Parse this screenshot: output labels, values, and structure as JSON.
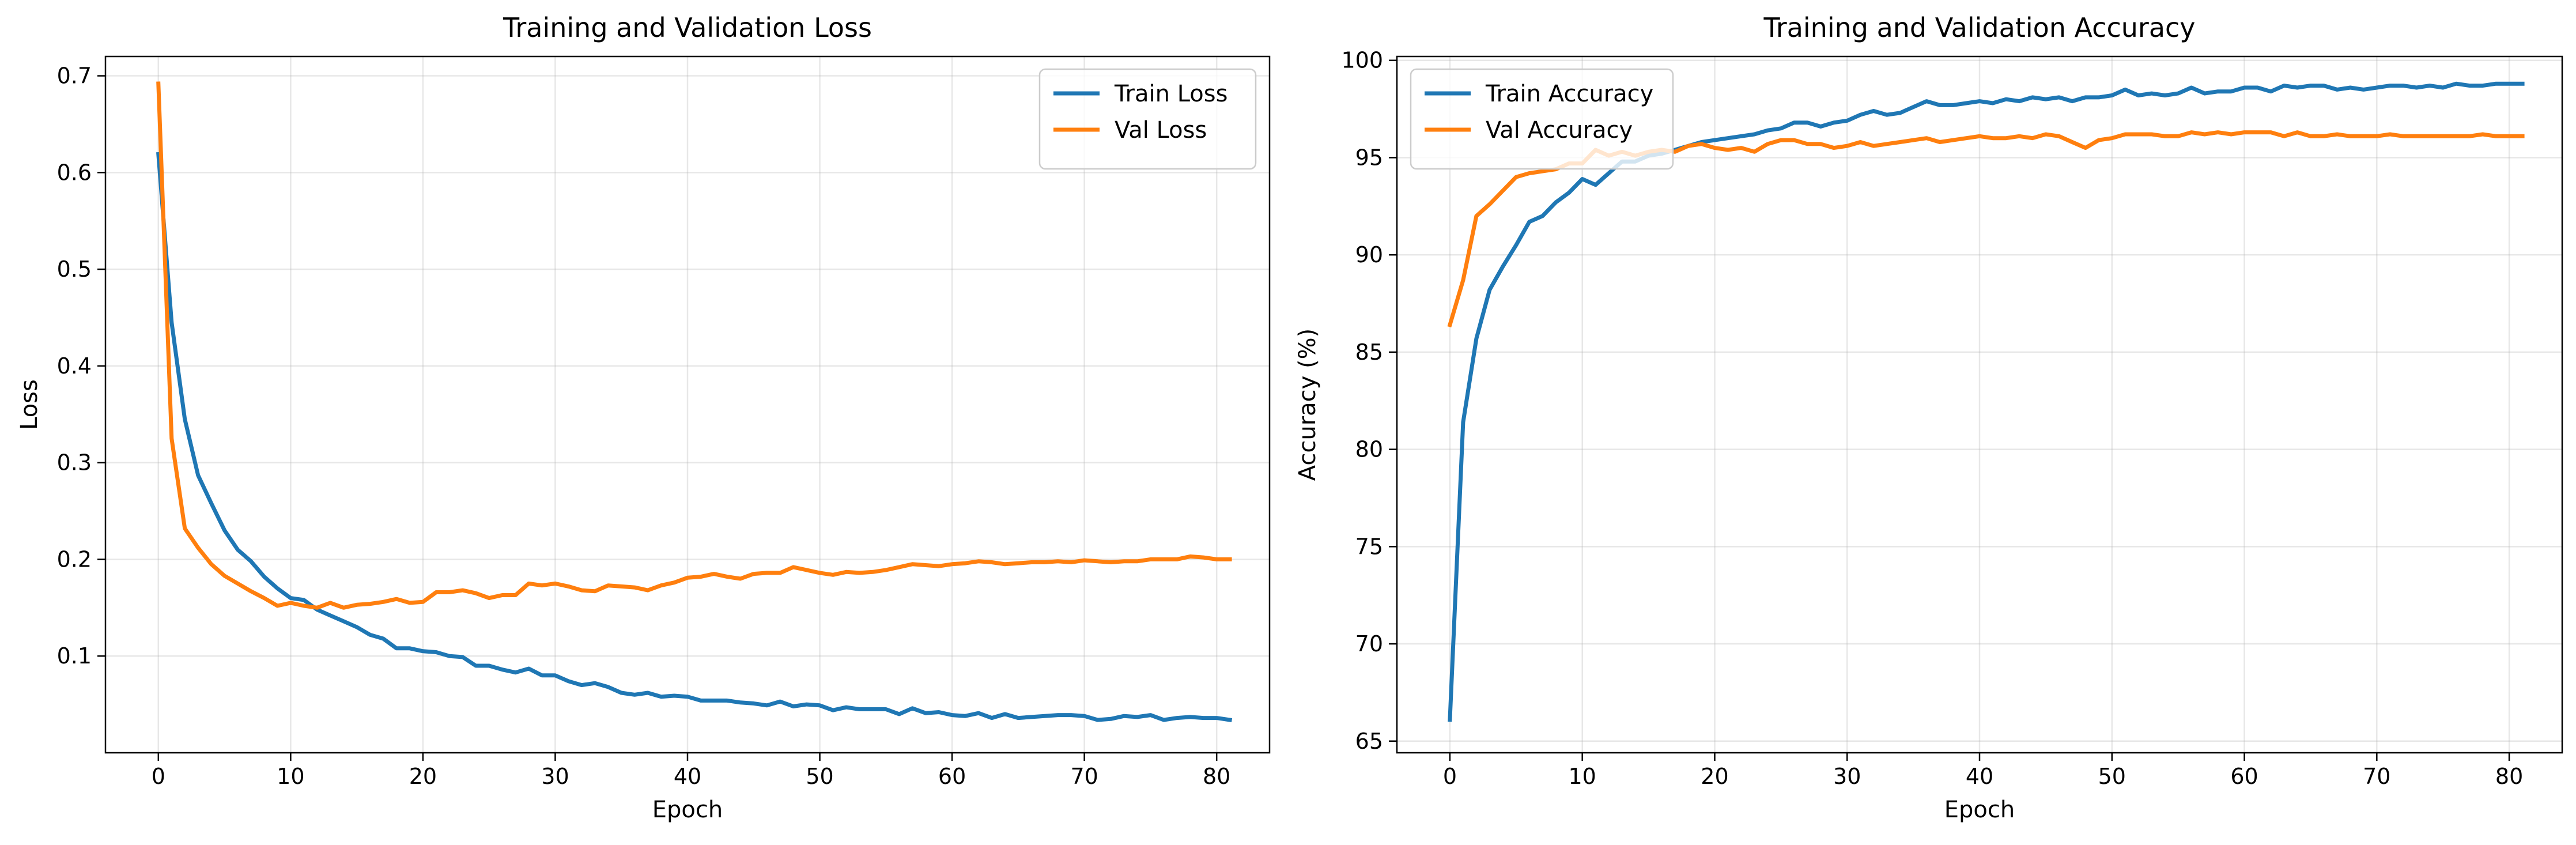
{
  "chart_data": [
    {
      "type": "line",
      "title": "Training and Validation Loss",
      "xlabel": "Epoch",
      "ylabel": "Loss",
      "xlim": [
        -4,
        84
      ],
      "ylim": [
        0.0,
        0.72
      ],
      "xticks": [
        0,
        10,
        20,
        30,
        40,
        50,
        60,
        70,
        80
      ],
      "yticks": [
        0.1,
        0.2,
        0.3,
        0.4,
        0.5,
        0.6,
        0.7
      ],
      "grid": true,
      "legend_position": "top-right",
      "series": [
        {
          "name": "Train Loss",
          "color": "#1f77b4",
          "values": [
            0.619,
            0.445,
            0.345,
            0.287,
            0.258,
            0.23,
            0.21,
            0.198,
            0.182,
            0.17,
            0.16,
            0.158,
            0.148,
            0.142,
            0.136,
            0.13,
            0.122,
            0.118,
            0.108,
            0.108,
            0.105,
            0.104,
            0.1,
            0.099,
            0.09,
            0.09,
            0.086,
            0.083,
            0.087,
            0.08,
            0.08,
            0.074,
            0.07,
            0.072,
            0.068,
            0.062,
            0.06,
            0.062,
            0.058,
            0.059,
            0.058,
            0.054,
            0.054,
            0.054,
            0.052,
            0.051,
            0.049,
            0.053,
            0.048,
            0.05,
            0.049,
            0.044,
            0.047,
            0.045,
            0.045,
            0.045,
            0.04,
            0.046,
            0.041,
            0.042,
            0.039,
            0.038,
            0.041,
            0.036,
            0.04,
            0.036,
            0.037,
            0.038,
            0.039,
            0.039,
            0.038,
            0.034,
            0.035,
            0.038,
            0.037,
            0.039,
            0.034,
            0.036,
            0.037,
            0.036,
            0.036,
            0.034
          ]
        },
        {
          "name": "Val Loss",
          "color": "#ff7f0e",
          "values": [
            0.692,
            0.325,
            0.232,
            0.212,
            0.195,
            0.183,
            0.175,
            0.167,
            0.16,
            0.152,
            0.155,
            0.152,
            0.15,
            0.155,
            0.15,
            0.153,
            0.154,
            0.156,
            0.159,
            0.155,
            0.156,
            0.166,
            0.166,
            0.168,
            0.165,
            0.16,
            0.163,
            0.163,
            0.175,
            0.173,
            0.175,
            0.172,
            0.168,
            0.167,
            0.173,
            0.172,
            0.171,
            0.168,
            0.173,
            0.176,
            0.181,
            0.182,
            0.185,
            0.182,
            0.18,
            0.185,
            0.186,
            0.186,
            0.192,
            0.189,
            0.186,
            0.184,
            0.187,
            0.186,
            0.187,
            0.189,
            0.192,
            0.195,
            0.194,
            0.193,
            0.195,
            0.196,
            0.198,
            0.197,
            0.195,
            0.196,
            0.197,
            0.197,
            0.198,
            0.197,
            0.199,
            0.198,
            0.197,
            0.198,
            0.198,
            0.2,
            0.2,
            0.2,
            0.203,
            0.202,
            0.2,
            0.2
          ]
        }
      ]
    },
    {
      "type": "line",
      "title": "Training and Validation Accuracy",
      "xlabel": "Epoch",
      "ylabel": "Accuracy (%)",
      "xlim": [
        -4,
        84
      ],
      "ylim": [
        64.4,
        100.2
      ],
      "xticks": [
        0,
        10,
        20,
        30,
        40,
        50,
        60,
        70,
        80
      ],
      "yticks": [
        65,
        70,
        75,
        80,
        85,
        90,
        95,
        100
      ],
      "grid": true,
      "legend_position": "top-left",
      "series": [
        {
          "name": "Train Accuracy",
          "color": "#1f77b4",
          "values": [
            66.1,
            81.4,
            85.7,
            88.2,
            89.4,
            90.5,
            91.7,
            92.0,
            92.7,
            93.2,
            93.9,
            93.6,
            94.2,
            94.8,
            94.8,
            95.1,
            95.2,
            95.4,
            95.6,
            95.8,
            95.9,
            96.0,
            96.1,
            96.2,
            96.4,
            96.5,
            96.8,
            96.8,
            96.6,
            96.8,
            96.9,
            97.2,
            97.4,
            97.2,
            97.3,
            97.6,
            97.9,
            97.7,
            97.7,
            97.8,
            97.9,
            97.8,
            98.0,
            97.9,
            98.1,
            98.0,
            98.1,
            97.9,
            98.1,
            98.1,
            98.2,
            98.5,
            98.2,
            98.3,
            98.2,
            98.3,
            98.6,
            98.3,
            98.4,
            98.4,
            98.6,
            98.6,
            98.4,
            98.7,
            98.6,
            98.7,
            98.7,
            98.5,
            98.6,
            98.5,
            98.6,
            98.7,
            98.7,
            98.6,
            98.7,
            98.6,
            98.8,
            98.7,
            98.7,
            98.8,
            98.8,
            98.8
          ]
        },
        {
          "name": "Val Accuracy",
          "color": "#ff7f0e",
          "values": [
            86.4,
            88.7,
            92.0,
            92.6,
            93.3,
            94.0,
            94.2,
            94.3,
            94.4,
            94.7,
            94.7,
            95.4,
            95.1,
            95.3,
            95.1,
            95.3,
            95.4,
            95.3,
            95.6,
            95.7,
            95.5,
            95.4,
            95.5,
            95.3,
            95.7,
            95.9,
            95.9,
            95.7,
            95.7,
            95.5,
            95.6,
            95.8,
            95.6,
            95.7,
            95.8,
            95.9,
            96.0,
            95.8,
            95.9,
            96.0,
            96.1,
            96.0,
            96.0,
            96.1,
            96.0,
            96.2,
            96.1,
            95.8,
            95.5,
            95.9,
            96.0,
            96.2,
            96.2,
            96.2,
            96.1,
            96.1,
            96.3,
            96.2,
            96.3,
            96.2,
            96.3,
            96.3,
            96.3,
            96.1,
            96.3,
            96.1,
            96.1,
            96.2,
            96.1,
            96.1,
            96.1,
            96.2,
            96.1,
            96.1,
            96.1,
            96.1,
            96.1,
            96.1,
            96.2,
            96.1,
            96.1,
            96.1
          ]
        }
      ]
    }
  ]
}
